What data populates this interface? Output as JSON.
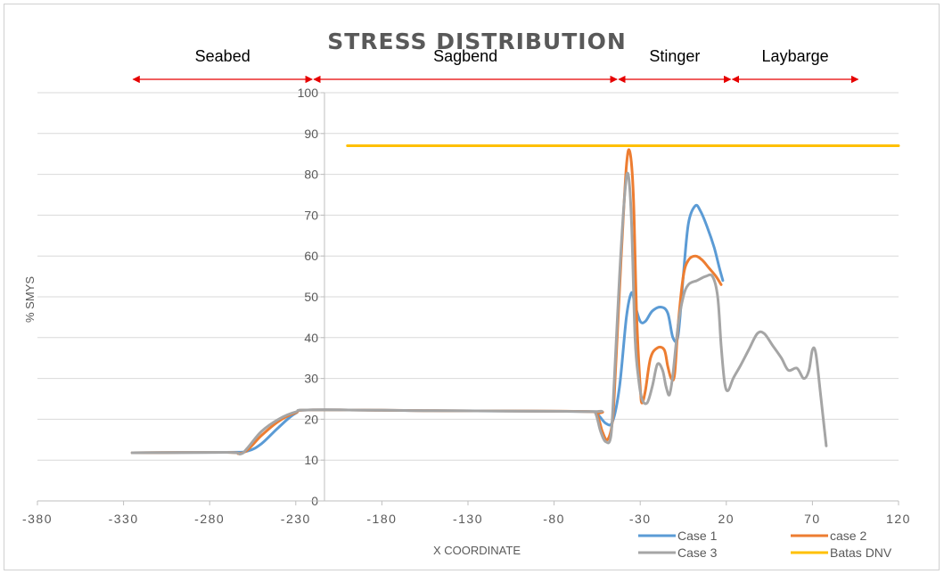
{
  "chart_data": {
    "type": "line",
    "title": "STRESS DISTRIBUTION",
    "xlabel": "X COORDINATE",
    "ylabel": "% SMYS",
    "xlim": [
      -380,
      120
    ],
    "ylim": [
      0,
      100
    ],
    "x_ticks": [
      -380,
      -330,
      -280,
      -230,
      -180,
      -130,
      -80,
      -30,
      20,
      70,
      120
    ],
    "y_ticks": [
      0,
      10,
      20,
      30,
      40,
      50,
      60,
      70,
      80,
      90,
      100
    ],
    "grid": true,
    "legend_position": "bottom-right",
    "regions": [
      {
        "label": "Seabed",
        "x_start": -325,
        "x_end": -220
      },
      {
        "label": "Sagbend",
        "x_start": -220,
        "x_end": -43
      },
      {
        "label": "Stinger",
        "x_start": -43,
        "x_end": 23
      },
      {
        "label": "Laybarge",
        "x_start": 23,
        "x_end": 97
      }
    ],
    "series": [
      {
        "name": "Case 1",
        "color": "#5b9bd5",
        "points": [
          [
            -325,
            11.8
          ],
          [
            -270,
            11.9
          ],
          [
            -258,
            12.2
          ],
          [
            -250,
            14
          ],
          [
            -240,
            18
          ],
          [
            -230,
            21.5
          ],
          [
            -220,
            22.3
          ],
          [
            -150,
            22.1
          ],
          [
            -60,
            21.9
          ],
          [
            -55,
            21.3
          ],
          [
            -50,
            19
          ],
          [
            -46,
            19.5
          ],
          [
            -42,
            28
          ],
          [
            -38,
            45
          ],
          [
            -35,
            51
          ],
          [
            -33,
            48
          ],
          [
            -30,
            44
          ],
          [
            -27,
            44
          ],
          [
            -23,
            46.5
          ],
          [
            -18,
            47.5
          ],
          [
            -14,
            46
          ],
          [
            -11,
            40
          ],
          [
            -8,
            40.5
          ],
          [
            -5,
            55
          ],
          [
            -2,
            68
          ],
          [
            2,
            72.3
          ],
          [
            5,
            71
          ],
          [
            9,
            67
          ],
          [
            13,
            62
          ],
          [
            16,
            57
          ],
          [
            18,
            54
          ]
        ]
      },
      {
        "name": "case 2",
        "color": "#ed7d31",
        "points": [
          [
            -325,
            11.8
          ],
          [
            -270,
            11.9
          ],
          [
            -263,
            11.6
          ],
          [
            -258,
            12.5
          ],
          [
            -250,
            16
          ],
          [
            -240,
            19.5
          ],
          [
            -230,
            21.6
          ],
          [
            -220,
            22.3
          ],
          [
            -150,
            22.1
          ],
          [
            -60,
            21.9
          ],
          [
            -55,
            21
          ],
          [
            -52,
            17
          ],
          [
            -49,
            15
          ],
          [
            -46,
            20
          ],
          [
            -44,
            35
          ],
          [
            -41,
            60
          ],
          [
            -38,
            82
          ],
          [
            -36,
            85.5
          ],
          [
            -34,
            75
          ],
          [
            -32,
            45
          ],
          [
            -30,
            28
          ],
          [
            -29,
            24
          ],
          [
            -27,
            27
          ],
          [
            -24,
            35
          ],
          [
            -20,
            37.5
          ],
          [
            -16,
            37
          ],
          [
            -14,
            33
          ],
          [
            -12,
            30
          ],
          [
            -10,
            31
          ],
          [
            -8,
            43
          ],
          [
            -5,
            55
          ],
          [
            -2,
            59
          ],
          [
            2,
            60
          ],
          [
            6,
            59
          ],
          [
            10,
            57
          ],
          [
            14,
            55
          ],
          [
            17,
            53
          ]
        ]
      },
      {
        "name": "Case 3",
        "color": "#a5a5a5",
        "points": [
          [
            -325,
            11.8
          ],
          [
            -270,
            11.9
          ],
          [
            -262,
            11.5
          ],
          [
            -258,
            13
          ],
          [
            -250,
            17
          ],
          [
            -240,
            20
          ],
          [
            -230,
            21.8
          ],
          [
            -220,
            22.3
          ],
          [
            -150,
            22.1
          ],
          [
            -60,
            21.9
          ],
          [
            -56,
            21.5
          ],
          [
            -53,
            17
          ],
          [
            -50,
            14.5
          ],
          [
            -47,
            16
          ],
          [
            -45,
            30
          ],
          [
            -42,
            55
          ],
          [
            -39,
            75
          ],
          [
            -37,
            80
          ],
          [
            -35,
            68
          ],
          [
            -33,
            40
          ],
          [
            -31,
            30
          ],
          [
            -29,
            25
          ],
          [
            -26,
            24
          ],
          [
            -23,
            28
          ],
          [
            -20,
            33.5
          ],
          [
            -17,
            32
          ],
          [
            -15,
            28
          ],
          [
            -13,
            26
          ],
          [
            -11,
            31
          ],
          [
            -8,
            43
          ],
          [
            -5,
            50
          ],
          [
            -2,
            53
          ],
          [
            3,
            54
          ],
          [
            8,
            55
          ],
          [
            12,
            55
          ],
          [
            15,
            50
          ],
          [
            17,
            38
          ],
          [
            19,
            29
          ],
          [
            21,
            27
          ],
          [
            24,
            30
          ],
          [
            28,
            33
          ],
          [
            33,
            37
          ],
          [
            38,
            41
          ],
          [
            42,
            41
          ],
          [
            47,
            38
          ],
          [
            52,
            35
          ],
          [
            56,
            32
          ],
          [
            61,
            32.5
          ],
          [
            65,
            30
          ],
          [
            68,
            32
          ],
          [
            70,
            37
          ],
          [
            72,
            36
          ],
          [
            75,
            25
          ],
          [
            78,
            13.5
          ]
        ]
      },
      {
        "name": "Batas DNV",
        "color": "#ffc000",
        "points": [
          [
            -200,
            87
          ],
          [
            120,
            87
          ]
        ]
      }
    ]
  }
}
